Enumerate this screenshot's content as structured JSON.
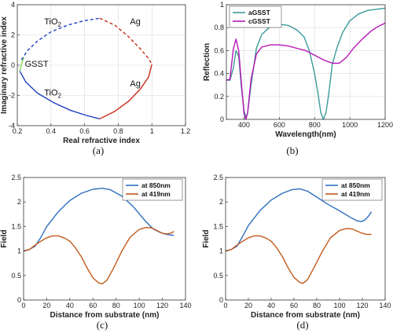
{
  "chart_data": [
    {
      "panel": "a",
      "caption": "(a)",
      "type": "line",
      "xlabel": "Real refractive index",
      "ylabel": "Imaginary refractive index",
      "xlim": [
        0.2,
        1.2
      ],
      "ylim": [
        -4,
        4
      ],
      "xticks": [
        0.2,
        0.4,
        0.6,
        0.8,
        1.0,
        1.2
      ],
      "yticks": [
        -4,
        -2,
        0,
        2,
        4
      ],
      "xtick_labels": [
        "0.2",
        "0.4",
        "0.6",
        "0.8",
        "1",
        "1.2"
      ],
      "ytick_labels": [
        "-4",
        "-2",
        "0",
        "2",
        "4"
      ],
      "grid": true,
      "annotations": [
        {
          "base": "TiO",
          "sub": "2",
          "x": 0.36,
          "y": 2.7
        },
        {
          "base": "Ag",
          "sub": "",
          "x": 0.87,
          "y": 2.7
        },
        {
          "base": "GSST",
          "sub": "",
          "x": 0.245,
          "y": -0.1
        },
        {
          "base": "TiO",
          "sub": "2",
          "x": 0.36,
          "y": -2.0
        },
        {
          "base": "Ag",
          "sub": "",
          "x": 0.87,
          "y": -1.4
        }
      ],
      "series": [
        {
          "color": "#1f3fbf",
          "style": "dashed",
          "x": [
            0.225,
            0.26,
            0.32,
            0.4,
            0.5,
            0.6,
            0.69
          ],
          "y": [
            0.35,
            0.95,
            1.6,
            2.2,
            2.65,
            2.95,
            3.1
          ]
        },
        {
          "color": "#cc2a1a",
          "style": "dashed",
          "x": [
            0.69,
            0.78,
            0.86,
            0.93,
            0.98,
            1.0
          ],
          "y": [
            3.1,
            2.65,
            1.9,
            1.1,
            0.45,
            0.05
          ]
        },
        {
          "color": "#7ed957",
          "style": "solid",
          "x": [
            0.215,
            0.222,
            0.23,
            0.24
          ],
          "y": [
            -0.4,
            -0.05,
            0.25,
            0.5
          ]
        },
        {
          "color": "#1f3fbf",
          "style": "solid",
          "x": [
            0.215,
            0.25,
            0.32,
            0.42,
            0.52,
            0.62,
            0.69
          ],
          "y": [
            -0.4,
            -1.1,
            -1.85,
            -2.5,
            -3.0,
            -3.35,
            -3.55
          ]
        },
        {
          "color": "#cc2a1a",
          "style": "solid",
          "x": [
            0.69,
            0.78,
            0.86,
            0.93,
            0.98,
            1.0
          ],
          "y": [
            -3.55,
            -3.05,
            -2.4,
            -1.6,
            -0.8,
            0.05
          ]
        }
      ]
    },
    {
      "panel": "b",
      "caption": "(b)",
      "type": "line",
      "xlabel": "Wavelength(nm)",
      "ylabel": "Reflection",
      "xlim": [
        300,
        1200
      ],
      "ylim": [
        0,
        1
      ],
      "xticks": [
        400,
        600,
        800,
        1000,
        1200
      ],
      "yticks": [
        0,
        0.2,
        0.4,
        0.6,
        0.8,
        1
      ],
      "xtick_labels": [
        "400",
        "600",
        "800",
        "1000",
        "1200"
      ],
      "ytick_labels": [
        "0",
        "0.2",
        "0.4",
        "0.6",
        "0.8",
        "1"
      ],
      "grid": true,
      "legend": "top-left",
      "series": [
        {
          "name": "aGSST",
          "color": "#3a9a9a",
          "x": [
            300,
            320,
            340,
            355,
            370,
            385,
            400,
            410,
            420,
            440,
            470,
            500,
            550,
            600,
            650,
            700,
            740,
            770,
            800,
            820,
            835,
            850,
            865,
            880,
            900,
            930,
            960,
            1000,
            1050,
            1100,
            1150,
            1200
          ],
          "y": [
            0.35,
            0.34,
            0.45,
            0.6,
            0.55,
            0.28,
            0.08,
            0.02,
            0.05,
            0.3,
            0.62,
            0.74,
            0.81,
            0.83,
            0.82,
            0.78,
            0.72,
            0.6,
            0.4,
            0.22,
            0.06,
            0.0,
            0.06,
            0.22,
            0.48,
            0.64,
            0.76,
            0.86,
            0.92,
            0.95,
            0.96,
            0.97
          ]
        },
        {
          "name": "cGSST",
          "color": "#b516b5",
          "x": [
            300,
            320,
            340,
            355,
            370,
            385,
            400,
            410,
            420,
            440,
            470,
            500,
            550,
            600,
            650,
            700,
            750,
            800,
            850,
            900,
            940,
            980,
            1020,
            1070,
            1120,
            1160,
            1200
          ],
          "y": [
            0.34,
            0.35,
            0.62,
            0.7,
            0.6,
            0.32,
            0.05,
            0.0,
            0.05,
            0.35,
            0.57,
            0.63,
            0.65,
            0.65,
            0.64,
            0.62,
            0.6,
            0.56,
            0.52,
            0.49,
            0.49,
            0.54,
            0.62,
            0.7,
            0.77,
            0.81,
            0.84
          ]
        }
      ]
    },
    {
      "panel": "c",
      "caption": "(c)",
      "type": "line",
      "xlabel": "Distance from substrate (nm)",
      "ylabel": "Field",
      "xlim": [
        0,
        140
      ],
      "ylim": [
        0,
        2.5
      ],
      "xticks": [
        0,
        20,
        40,
        60,
        80,
        100,
        120,
        140
      ],
      "yticks": [
        0,
        0.5,
        1,
        1.5,
        2,
        2.5
      ],
      "xtick_labels": [
        "0",
        "20",
        "40",
        "60",
        "80",
        "100",
        "120",
        "140"
      ],
      "ytick_labels": [
        "0",
        "0.5",
        "1",
        "1.5",
        "2",
        "2.5"
      ],
      "grid": false,
      "legend": "top-right",
      "series": [
        {
          "name": "at 850nm",
          "color": "#2e6fbe",
          "x": [
            0,
            5,
            10,
            15,
            20,
            30,
            40,
            50,
            60,
            68,
            75,
            85,
            95,
            105,
            112,
            118,
            122,
            126,
            130
          ],
          "y": [
            1.0,
            1.03,
            1.1,
            1.28,
            1.5,
            1.8,
            2.03,
            2.18,
            2.26,
            2.28,
            2.25,
            2.12,
            1.9,
            1.62,
            1.45,
            1.38,
            1.35,
            1.33,
            1.32
          ]
        },
        {
          "name": "at 419nm",
          "color": "#c25a1c",
          "x": [
            0,
            5,
            10,
            15,
            20,
            25,
            30,
            35,
            40,
            45,
            50,
            55,
            60,
            65,
            68,
            72,
            78,
            85,
            92,
            100,
            106,
            111,
            116,
            120,
            124,
            128,
            130
          ],
          "y": [
            1.0,
            1.03,
            1.12,
            1.2,
            1.27,
            1.31,
            1.31,
            1.27,
            1.2,
            1.06,
            0.88,
            0.65,
            0.45,
            0.35,
            0.33,
            0.4,
            0.66,
            1.0,
            1.28,
            1.44,
            1.48,
            1.47,
            1.41,
            1.36,
            1.35,
            1.37,
            1.4
          ]
        }
      ]
    },
    {
      "panel": "d",
      "caption": "(d)",
      "type": "line",
      "xlabel": "Distance from substrate (nm)",
      "ylabel": "Field",
      "xlim": [
        0,
        140
      ],
      "ylim": [
        0,
        2.5
      ],
      "xticks": [
        0,
        20,
        40,
        60,
        80,
        100,
        120,
        140
      ],
      "yticks": [
        0,
        0.5,
        1,
        1.5,
        2,
        2.5
      ],
      "xtick_labels": [
        "0",
        "20",
        "40",
        "60",
        "80",
        "100",
        "120",
        "140"
      ],
      "ytick_labels": [
        "0",
        "0.5",
        "1",
        "1.5",
        "2",
        "2.5"
      ],
      "grid": false,
      "legend": "top-right",
      "series": [
        {
          "name": "at 850nm",
          "color": "#2e6fbe",
          "x": [
            0,
            5,
            10,
            15,
            20,
            30,
            40,
            50,
            58,
            65,
            72,
            80,
            90,
            100,
            110,
            115,
            119,
            122,
            125,
            128
          ],
          "y": [
            1.0,
            1.03,
            1.1,
            1.3,
            1.52,
            1.82,
            2.04,
            2.18,
            2.25,
            2.27,
            2.22,
            2.1,
            1.95,
            1.82,
            1.68,
            1.62,
            1.6,
            1.63,
            1.7,
            1.8
          ]
        },
        {
          "name": "at 419nm",
          "color": "#c25a1c",
          "x": [
            0,
            5,
            10,
            15,
            20,
            25,
            30,
            35,
            40,
            45,
            50,
            55,
            60,
            65,
            68,
            72,
            78,
            85,
            92,
            100,
            106,
            111,
            116,
            120,
            124,
            128
          ],
          "y": [
            1.0,
            1.03,
            1.12,
            1.2,
            1.27,
            1.31,
            1.31,
            1.27,
            1.2,
            1.06,
            0.88,
            0.65,
            0.46,
            0.36,
            0.34,
            0.42,
            0.68,
            1.0,
            1.27,
            1.42,
            1.46,
            1.45,
            1.4,
            1.36,
            1.34,
            1.34
          ]
        }
      ]
    }
  ]
}
